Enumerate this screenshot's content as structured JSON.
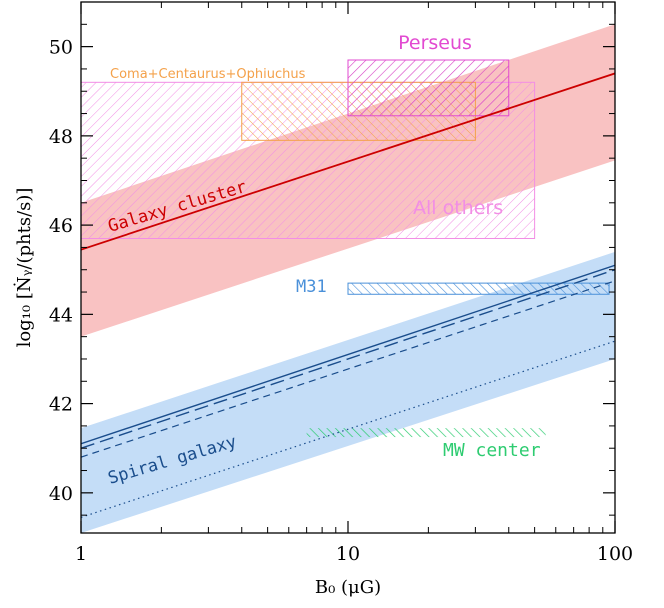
{
  "chart_data": {
    "type": "line",
    "xlabel": "B₀ (μG)",
    "ylabel": "log₁₀ [Ṅᵧ/(phts/s)]",
    "xscale": "log",
    "xlim": [
      1,
      100
    ],
    "ylim": [
      39.1,
      51.0
    ],
    "x_ticks": [
      1,
      10,
      100
    ],
    "x_tick_labels": [
      "1",
      "10",
      "100"
    ],
    "y_ticks": [
      40,
      42,
      44,
      46,
      48,
      50
    ],
    "y_tick_labels": [
      "40",
      "42",
      "44",
      "46",
      "48",
      "50"
    ],
    "grid": false,
    "colors": {
      "cluster_line": "#cc0000",
      "cluster_band": "#f9c2c2",
      "spiral_line": "#1a4d8c",
      "spiral_band": "#c4ddf7",
      "perseus": "#e24ad1",
      "all_others": "#f28ee5",
      "coma": "#f4a14a",
      "m31": "#4a90d9",
      "mw_center": "#2ecc71"
    },
    "series": [
      {
        "name": "Galaxy cluster",
        "style": "solid",
        "x": [
          1,
          100
        ],
        "y": [
          45.45,
          49.4
        ]
      },
      {
        "style": "solid",
        "x": [
          1,
          100
        ],
        "y": [
          41.1,
          45.1
        ]
      },
      {
        "style": "long-dash",
        "x": [
          1,
          100
        ],
        "y": [
          41.0,
          45.0
        ]
      },
      {
        "style": "short-dash",
        "x": [
          1,
          100
        ],
        "y": [
          40.8,
          44.75
        ]
      },
      {
        "style": "dotted",
        "x": [
          1,
          100
        ],
        "y": [
          39.45,
          43.4
        ]
      }
    ],
    "bands": [
      {
        "x": [
          1,
          100
        ],
        "lower": [
          43.5,
          47.45
        ],
        "upper": [
          46.5,
          50.5
        ]
      },
      {
        "x": [
          1,
          100
        ],
        "lower": [
          39.1,
          43.0
        ],
        "upper": [
          41.45,
          45.4
        ]
      }
    ],
    "regions": [
      {
        "name": "Perseus",
        "x_range": [
          10,
          40
        ],
        "y_range": [
          48.45,
          49.7
        ]
      },
      {
        "name": "All others",
        "x_range": [
          1,
          50
        ],
        "y_range": [
          45.7,
          49.2
        ]
      },
      {
        "name": "Coma+Centaurus+Ophiuchus",
        "x_range": [
          4,
          30
        ],
        "y_range": [
          47.9,
          49.2
        ]
      },
      {
        "name": "M31",
        "x_range": [
          10,
          95
        ],
        "y_range": [
          44.45,
          44.7
        ]
      },
      {
        "name": "MW center",
        "x_range": [
          7,
          55
        ],
        "y_range": [
          41.25,
          41.45
        ]
      }
    ],
    "annotations": [
      {
        "text": "Galaxy cluster"
      },
      {
        "text": "Spiral galaxy"
      }
    ]
  }
}
